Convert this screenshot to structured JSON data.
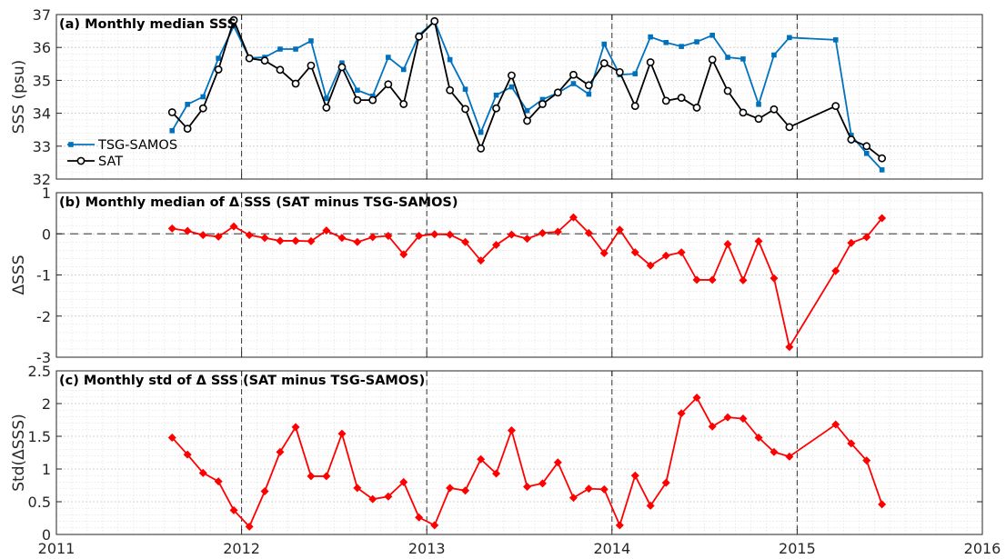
{
  "chart_data": [
    {
      "type": "line",
      "title": "(a) Monthly median SSS",
      "xlabel": "",
      "ylabel": "SSS (psu)",
      "xlim": [
        2011,
        2016
      ],
      "ylim": [
        32,
        37
      ],
      "yticks": [
        "32",
        "33",
        "34",
        "35",
        "36",
        "37"
      ],
      "grid": true,
      "legend": "lower-left",
      "series": [
        {
          "name": "TSG-SAMOS",
          "color": "#0072bd",
          "marker": "square",
          "x": [
            2011.625,
            2011.708,
            2011.792,
            2011.875,
            2011.958,
            2012.042,
            2012.125,
            2012.208,
            2012.292,
            2012.375,
            2012.458,
            2012.542,
            2012.625,
            2012.708,
            2012.792,
            2012.875,
            2012.958,
            2013.042,
            2013.125,
            2013.208,
            2013.292,
            2013.375,
            2013.458,
            2013.542,
            2013.625,
            2013.708,
            2013.792,
            2013.875,
            2013.958,
            2014.042,
            2014.125,
            2014.208,
            2014.292,
            2014.375,
            2014.458,
            2014.542,
            2014.625,
            2014.708,
            2014.792,
            2014.875,
            2014.958,
            2015.208,
            2015.292,
            2015.375,
            2015.458
          ],
          "y": [
            33.47,
            34.27,
            34.5,
            35.67,
            36.65,
            35.68,
            35.7,
            35.95,
            35.95,
            36.2,
            34.45,
            35.53,
            34.7,
            34.52,
            35.7,
            35.33,
            36.38,
            36.8,
            35.63,
            34.73,
            33.42,
            34.55,
            34.8,
            34.08,
            34.42,
            34.62,
            34.9,
            34.58,
            36.1,
            35.17,
            35.2,
            36.32,
            36.15,
            36.03,
            36.17,
            36.37,
            35.7,
            35.65,
            34.27,
            35.77,
            36.3,
            36.23,
            33.33,
            32.78,
            32.28
          ]
        },
        {
          "name": "SAT",
          "color": "#000000",
          "marker": "circle",
          "x": [
            2011.625,
            2011.708,
            2011.792,
            2011.875,
            2011.958,
            2012.042,
            2012.125,
            2012.208,
            2012.292,
            2012.375,
            2012.458,
            2012.542,
            2012.625,
            2012.708,
            2012.792,
            2012.875,
            2012.958,
            2013.042,
            2013.125,
            2013.208,
            2013.292,
            2013.375,
            2013.458,
            2013.542,
            2013.625,
            2013.708,
            2013.792,
            2013.875,
            2013.958,
            2014.042,
            2014.125,
            2014.208,
            2014.292,
            2014.375,
            2014.458,
            2014.542,
            2014.625,
            2014.708,
            2014.792,
            2014.875,
            2014.958,
            2015.208,
            2015.292,
            2015.375,
            2015.458
          ],
          "y": [
            34.03,
            33.53,
            34.15,
            35.33,
            36.83,
            35.67,
            35.6,
            35.32,
            34.9,
            35.45,
            34.17,
            35.4,
            34.4,
            34.4,
            34.88,
            34.28,
            36.33,
            36.8,
            34.7,
            34.13,
            32.93,
            34.15,
            35.15,
            33.77,
            34.28,
            34.63,
            35.17,
            34.85,
            35.52,
            35.25,
            34.22,
            35.55,
            34.38,
            34.47,
            34.17,
            35.63,
            34.68,
            34.02,
            33.83,
            34.12,
            33.58,
            34.22,
            33.2,
            33.0,
            32.63
          ]
        }
      ]
    },
    {
      "type": "line",
      "title": "(b) Monthly median of Δ SSS (SAT minus TSG-SAMOS)",
      "xlabel": "",
      "ylabel": "ΔSSS",
      "xlim": [
        2011,
        2016
      ],
      "ylim": [
        -3,
        1
      ],
      "yticks": [
        "-3",
        "-2",
        "-1",
        "0",
        "1"
      ],
      "grid": true,
      "reference_line": 0,
      "series": [
        {
          "color": "#ff0000",
          "marker": "diamond",
          "x": [
            2011.625,
            2011.708,
            2011.792,
            2011.875,
            2011.958,
            2012.042,
            2012.125,
            2012.208,
            2012.292,
            2012.375,
            2012.458,
            2012.542,
            2012.625,
            2012.708,
            2012.792,
            2012.875,
            2012.958,
            2013.042,
            2013.125,
            2013.208,
            2013.292,
            2013.375,
            2013.458,
            2013.542,
            2013.625,
            2013.708,
            2013.792,
            2013.875,
            2013.958,
            2014.042,
            2014.125,
            2014.208,
            2014.292,
            2014.375,
            2014.458,
            2014.542,
            2014.625,
            2014.708,
            2014.792,
            2014.875,
            2014.958,
            2015.208,
            2015.292,
            2015.375,
            2015.458
          ],
          "y": [
            0.13,
            0.07,
            -0.03,
            -0.07,
            0.18,
            -0.03,
            -0.1,
            -0.17,
            -0.17,
            -0.18,
            0.08,
            -0.1,
            -0.2,
            -0.08,
            -0.05,
            -0.5,
            -0.05,
            -0.01,
            -0.02,
            -0.2,
            -0.65,
            -0.27,
            -0.02,
            -0.12,
            0.02,
            0.05,
            0.4,
            0.02,
            -0.47,
            0.1,
            -0.45,
            -0.77,
            -0.53,
            -0.45,
            -1.12,
            -1.12,
            -0.25,
            -1.13,
            -0.18,
            -1.08,
            -2.75,
            -0.9,
            -0.22,
            -0.08,
            0.38
          ]
        }
      ]
    },
    {
      "type": "line",
      "title": "(c) Monthly std of Δ SSS (SAT minus TSG-SAMOS)",
      "xlabel": "",
      "ylabel": "Std(ΔSSS)",
      "xlim": [
        2011,
        2016
      ],
      "ylim": [
        0,
        2.5
      ],
      "yticks": [
        "0",
        "0.5",
        "1",
        "1.5",
        "2",
        "2.5"
      ],
      "xticks": [
        "2011",
        "2012",
        "2013",
        "2014",
        "2015",
        "2016"
      ],
      "grid": true,
      "series": [
        {
          "color": "#ff0000",
          "marker": "diamond",
          "x": [
            2011.625,
            2011.708,
            2011.792,
            2011.875,
            2011.958,
            2012.042,
            2012.125,
            2012.208,
            2012.292,
            2012.375,
            2012.458,
            2012.542,
            2012.625,
            2012.708,
            2012.792,
            2012.875,
            2012.958,
            2013.042,
            2013.125,
            2013.208,
            2013.292,
            2013.375,
            2013.458,
            2013.542,
            2013.625,
            2013.708,
            2013.792,
            2013.875,
            2013.958,
            2014.042,
            2014.125,
            2014.208,
            2014.292,
            2014.375,
            2014.458,
            2014.542,
            2014.625,
            2014.708,
            2014.792,
            2014.875,
            2014.958,
            2015.208,
            2015.292,
            2015.375,
            2015.458
          ],
          "y": [
            1.48,
            1.22,
            0.94,
            0.81,
            0.37,
            0.12,
            0.66,
            1.26,
            1.64,
            0.89,
            0.89,
            1.54,
            0.71,
            0.54,
            0.58,
            0.8,
            0.26,
            0.14,
            0.71,
            0.67,
            1.15,
            0.93,
            1.59,
            0.73,
            0.78,
            1.1,
            0.56,
            0.7,
            0.69,
            0.14,
            0.9,
            0.44,
            0.79,
            1.85,
            2.09,
            1.65,
            1.79,
            1.77,
            1.48,
            1.26,
            1.19,
            1.68,
            1.39,
            1.13,
            0.46
          ]
        }
      ]
    }
  ]
}
